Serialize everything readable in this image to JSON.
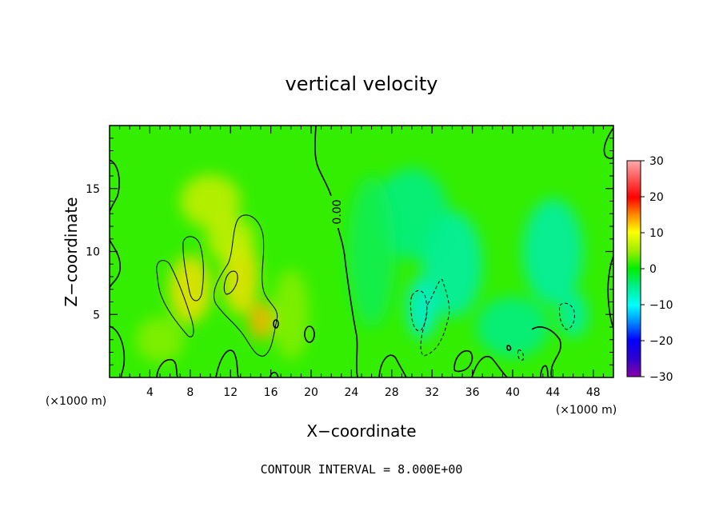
{
  "chart_data": {
    "type": "heatmap",
    "title": "vertical velocity",
    "xlabel": "X−coordinate",
    "ylabel": "Z−coordinate",
    "x_unit_label": "(×1000 m)",
    "y_unit_label": "(×1000 m)",
    "footer": "CONTOUR INTERVAL = 8.000E+00",
    "contour_label": "0.00",
    "contour_interval": 8.0,
    "xlim": [
      0,
      50
    ],
    "ylim": [
      0,
      20
    ],
    "x_ticks": [
      4,
      8,
      12,
      16,
      20,
      24,
      28,
      32,
      36,
      40,
      44,
      48
    ],
    "y_ticks": [
      5,
      10,
      15
    ],
    "colorbar": {
      "range": [
        -30,
        30
      ],
      "ticks": [
        30,
        20,
        10,
        0,
        -10,
        -20,
        -30
      ]
    },
    "colors": {
      "background_field": "#33ee00",
      "positive_core": "#f0e000",
      "negative_core": "#00eecc",
      "contour": "#000000"
    },
    "blobs": [
      {
        "x": 8,
        "z": 7,
        "w": 3.5,
        "h": 4.5,
        "value": 8
      },
      {
        "x": 13,
        "z": 8,
        "w": 3,
        "h": 5,
        "value": 9
      },
      {
        "x": 15,
        "z": 4.5,
        "w": 2,
        "h": 2.5,
        "value": 14
      },
      {
        "x": 10,
        "z": 14,
        "w": 5,
        "h": 3.5,
        "value": 5
      },
      {
        "x": 12,
        "z": 11,
        "w": 4,
        "h": 3,
        "value": 6
      },
      {
        "x": 5,
        "z": 3,
        "w": 4,
        "h": 3,
        "value": 3
      },
      {
        "x": 18,
        "z": 5,
        "w": 3,
        "h": 6,
        "value": 3
      },
      {
        "x": 31,
        "z": 5.5,
        "w": 2.5,
        "h": 4,
        "value": -11
      },
      {
        "x": 34,
        "z": 9,
        "w": 5,
        "h": 7,
        "value": -6
      },
      {
        "x": 30,
        "z": 13,
        "w": 6,
        "h": 6,
        "value": -4
      },
      {
        "x": 44,
        "z": 10,
        "w": 5,
        "h": 7,
        "value": -5
      },
      {
        "x": 40,
        "z": 4,
        "w": 6,
        "h": 4,
        "value": -3
      },
      {
        "x": 46,
        "z": 5,
        "w": 2.5,
        "h": 3,
        "value": -6
      },
      {
        "x": 26,
        "z": 10,
        "w": 4,
        "h": 10,
        "value": -2
      }
    ]
  }
}
